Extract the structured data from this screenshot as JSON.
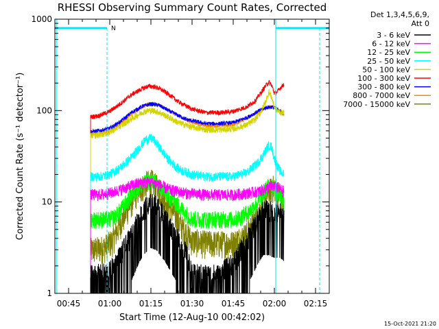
{
  "chart_data": {
    "type": "line",
    "title": "RHESSI Observing Summary Count Rates, Corrected",
    "xlabel": "Start Time (12-Aug-10 00:42:02)",
    "ylabel": "Corrected Count Rate (s⁻¹ detector⁻¹)",
    "x_unit": "minutes since 00:40",
    "xlim": [
      0,
      100
    ],
    "ylim": [
      1,
      1000
    ],
    "yscale": "log",
    "x_ticks": [
      {
        "label": "00:45",
        "value": 5
      },
      {
        "label": "01:00",
        "value": 20
      },
      {
        "label": "01:15",
        "value": 35
      },
      {
        "label": "01:30",
        "value": 50
      },
      {
        "label": "01:45",
        "value": 65
      },
      {
        "label": "02:00",
        "value": 80
      },
      {
        "label": "02:15",
        "value": 95
      }
    ],
    "y_ticks": [
      {
        "label": "1",
        "value": 1
      },
      {
        "label": "10",
        "value": 10
      },
      {
        "label": "100",
        "value": 100
      },
      {
        "label": "1000",
        "value": 1000
      }
    ],
    "legend": {
      "placement": "top-right outside",
      "header": [
        "Det 1,3,4,5,6,9,",
        "Att 0"
      ]
    },
    "series": [
      {
        "name": "3 - 6 keV",
        "color": "#000000",
        "noise": 0.9,
        "x": [
          13,
          17,
          20,
          24,
          28,
          31,
          33,
          35,
          37,
          40,
          44,
          48,
          50,
          53,
          56,
          60,
          62,
          65,
          67,
          70,
          72,
          74,
          76,
          78,
          80,
          82,
          83.5
        ],
        "y": [
          1.5,
          1.5,
          1.6,
          2.5,
          4,
          6.5,
          8,
          9,
          8.5,
          6.5,
          4,
          2.5,
          1.5,
          1.5,
          1.5,
          1.5,
          1.7,
          2,
          2.5,
          3.5,
          4.5,
          6,
          7.5,
          7.5,
          7,
          7,
          6.5
        ]
      },
      {
        "name": "6 - 12 keV",
        "color": "#ff00ff",
        "noise": 0.15,
        "x": [
          13,
          16,
          20,
          25,
          30,
          33,
          35,
          38,
          42,
          48,
          55,
          60,
          65,
          70,
          74,
          77,
          79,
          81,
          83.5
        ],
        "y": [
          12,
          12,
          12.5,
          14,
          16,
          16.5,
          16.5,
          15.5,
          13.5,
          12.5,
          12,
          12,
          12,
          12.5,
          13,
          14,
          15,
          14.5,
          13
        ]
      },
      {
        "name": "12 - 25 keV",
        "color": "#00ff00",
        "noise": 0.22,
        "x": [
          13,
          20,
          22,
          25,
          28,
          31,
          34,
          36,
          38,
          41,
          44,
          47,
          50,
          55,
          60,
          65,
          68,
          71,
          74,
          77,
          79,
          81,
          83.5
        ],
        "y": [
          6.5,
          6.5,
          7,
          9,
          12,
          15,
          17,
          17,
          15,
          12,
          10,
          8,
          6.5,
          6.5,
          6.5,
          6.5,
          7,
          8,
          10,
          14,
          16,
          13,
          10
        ]
      },
      {
        "name": "25 - 50 keV",
        "color": "#00ffff",
        "noise": 0.12,
        "x": [
          13,
          16,
          20,
          24,
          28,
          31,
          33,
          35,
          36,
          38,
          41,
          45,
          50,
          55,
          60,
          65,
          70,
          74,
          76,
          78,
          79,
          80,
          81,
          82,
          83.5
        ],
        "y": [
          19,
          19,
          20,
          24,
          31,
          40,
          48,
          50,
          48,
          40,
          30,
          23,
          20,
          19,
          19,
          19,
          21,
          27,
          33,
          42,
          40,
          30,
          25,
          22,
          20
        ]
      },
      {
        "name": "50 - 100 keV",
        "color": "#d4d400",
        "noise": 0.08,
        "x": [
          13,
          16,
          20,
          24,
          28,
          32,
          34,
          36,
          38,
          41,
          45,
          50,
          55,
          60,
          65,
          70,
          73,
          75,
          77,
          78,
          79,
          80,
          81,
          82,
          83.5
        ],
        "y": [
          53,
          54,
          58,
          68,
          82,
          96,
          100,
          100,
          96,
          86,
          74,
          66,
          62,
          62,
          63,
          70,
          80,
          96,
          130,
          160,
          140,
          110,
          100,
          96,
          94
        ]
      },
      {
        "name": "100 - 300 keV",
        "color": "#ff0000",
        "noise": 0.06,
        "x": [
          13,
          16,
          20,
          24,
          28,
          32,
          34,
          36,
          38,
          41,
          45,
          50,
          55,
          60,
          65,
          70,
          73,
          75,
          77,
          78,
          79,
          80,
          81,
          82,
          83.5
        ],
        "y": [
          85,
          88,
          98,
          120,
          150,
          175,
          185,
          183,
          175,
          155,
          125,
          104,
          95,
          95,
          98,
          110,
          128,
          155,
          190,
          205,
          190,
          155,
          160,
          175,
          195
        ]
      },
      {
        "name": "300 - 800 keV",
        "color": "#0000ff",
        "noise": 0.05,
        "x": [
          13,
          16,
          20,
          24,
          28,
          32,
          35,
          38,
          42,
          48,
          55,
          60,
          65,
          70,
          74,
          77,
          79,
          81,
          83.5
        ],
        "y": [
          59,
          60,
          64,
          76,
          96,
          112,
          118,
          114,
          98,
          80,
          72,
          72,
          74,
          84,
          98,
          108,
          110,
          104,
          92
        ]
      },
      {
        "name": "800 - 7000 keV",
        "color": "#ff8000",
        "noise": 0.04,
        "x": [
          13,
          16,
          20,
          24,
          28,
          32,
          35,
          38,
          42,
          48,
          55,
          60,
          65,
          70,
          74,
          77,
          79,
          81,
          83.5
        ],
        "y": [
          55,
          56,
          60,
          72,
          92,
          110,
          122,
          116,
          98,
          78,
          68,
          68,
          70,
          82,
          96,
          108,
          112,
          104,
          92
        ]
      },
      {
        "name": "7000 - 15000 keV",
        "color": "#808000",
        "noise": 0.35,
        "x": [
          13,
          18,
          21,
          24,
          27,
          30,
          33,
          35,
          37,
          40,
          43,
          46,
          50,
          55,
          60,
          65,
          70,
          73,
          76,
          78,
          80,
          82,
          83.5
        ],
        "y": [
          3,
          3.2,
          3.8,
          6,
          9,
          13,
          16,
          17,
          15,
          11,
          8,
          5.5,
          3.8,
          3.6,
          3.6,
          3.6,
          4.5,
          6.5,
          10,
          13,
          15,
          12,
          9
        ]
      }
    ],
    "annotations": {
      "night_bars": [
        [
          0,
          19
        ],
        [
          80.5,
          100
        ]
      ],
      "night_marker": "N",
      "cyan_verticals": [
        0.7,
        80.5
      ],
      "dashed_verticals": [
        19,
        96.5
      ]
    },
    "timestamp": "15-Oct-2021 21:20"
  }
}
